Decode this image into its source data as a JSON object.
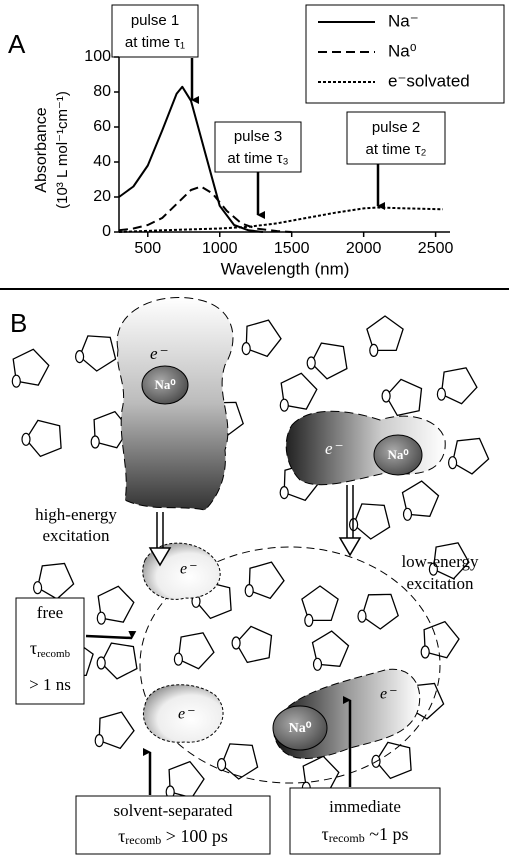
{
  "chart_data": {
    "type": "line",
    "panel_label": "A",
    "x_label": "Wavelength (nm)",
    "y_label": "Absorbance",
    "y_label_units": "(10³ L mol⁻¹cm⁻¹)",
    "xlim": [
      300,
      2600
    ],
    "xticks": [
      500,
      1000,
      1500,
      2000,
      2500
    ],
    "ylim": [
      0,
      100
    ],
    "yticks": [
      0,
      20,
      40,
      60,
      80,
      100
    ],
    "legend": "top-right",
    "series": [
      {
        "name": "Na⁻",
        "color": "#000000",
        "linestyle": "solid",
        "x": [
          300,
          400,
          500,
          600,
          700,
          740,
          800,
          900,
          1000,
          1100,
          1200,
          1300
        ],
        "values": [
          20,
          26,
          38,
          58,
          79,
          83,
          75,
          45,
          15,
          4,
          1,
          0
        ]
      },
      {
        "name": "Na⁰",
        "color": "#000000",
        "linestyle": "dashed",
        "x": [
          300,
          400,
          500,
          600,
          700,
          800,
          870,
          950,
          1050,
          1150,
          1250,
          1400,
          1500
        ],
        "values": [
          1,
          2,
          4,
          8,
          16,
          24,
          26,
          22,
          12,
          5,
          2,
          0.5,
          0
        ]
      },
      {
        "name": "e⁻solvated",
        "color": "#000000",
        "linestyle": "dotted",
        "x": [
          300,
          600,
          800,
          1000,
          1200,
          1400,
          1600,
          1800,
          2000,
          2100,
          2300,
          2550
        ],
        "values": [
          0,
          1,
          1.5,
          2,
          3,
          5,
          8,
          11,
          13.5,
          14,
          13.5,
          13
        ]
      }
    ],
    "annotations": [
      {
        "line1": "pulse 1",
        "line2": "at time τ₁"
      },
      {
        "line1": "pulse 3",
        "line2": "at time τ₃"
      },
      {
        "line1": "pulse 2",
        "line2": "at time τ₂"
      }
    ]
  },
  "diagram": {
    "panel_label": "B",
    "na_label": "Na⁰",
    "electron_label": "e⁻",
    "high_energy": [
      "high-energy",
      "excitation"
    ],
    "low_energy": [
      "low-energy",
      "excitation"
    ],
    "free_box": {
      "line1": "free",
      "symbol": "τ",
      "subscript": "recomb",
      "line3": "> 1 ns"
    },
    "solvent_box": {
      "line1": "solvent-separated",
      "symbol": "τ",
      "subscript": "recomb",
      "rest": " > 100 ps"
    },
    "immediate_box": {
      "line1": "immediate",
      "symbol": "τ",
      "subscript": "recomb",
      "rest": " ~1 ps"
    }
  }
}
